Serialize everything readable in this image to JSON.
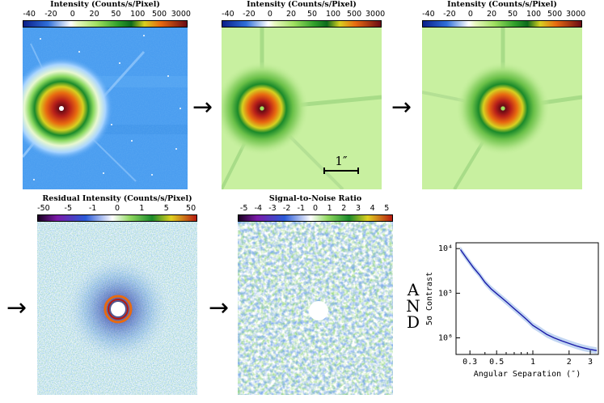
{
  "colorbars": {
    "intensity_title": "Intensity (Counts/s/Pixel)",
    "intensity_ticks": [
      "-40",
      "-20",
      "0",
      "20",
      "50",
      "100",
      "500",
      "3000"
    ],
    "residual_title": "Residual Intensity (Counts/s/Pixel)",
    "residual_ticks": [
      "-50",
      "-5",
      "-1",
      "0",
      "1",
      "5",
      "50"
    ],
    "snr_title": "Signal-to-Noise Ratio",
    "snr_ticks": [
      "-5",
      "-4",
      "-3",
      "-2",
      "-1",
      "0",
      "1",
      "2",
      "3",
      "4",
      "5"
    ]
  },
  "scale_bar_label": "1″",
  "arrow_glyph": "→",
  "and_letters": [
    "A",
    "N",
    "D"
  ],
  "colors": {
    "intensity_bg_raw": "#4a9df0",
    "intensity_bg_processed": "#c8f0a0",
    "arrow": "#000000",
    "curve": "#1a1aa8",
    "curve_band": "#8fb5e8"
  },
  "chart_data": {
    "type": "line",
    "title": "",
    "xlabel": "Angular Separation (″)",
    "ylabel": "5σ Contrast",
    "xscale": "log",
    "yscale": "log",
    "xlim": [
      0.23,
      3.5
    ],
    "ylim": [
      4.25e-07,
      0.000135
    ],
    "x_ticks": [
      "0.3",
      "0.5",
      "1",
      "2",
      "3"
    ],
    "x_tick_values": [
      0.3,
      0.5,
      1,
      2,
      3
    ],
    "y_ticks": [
      "10⁴",
      "10⁵",
      "10⁶"
    ],
    "y_tick_values": [
      0.0001,
      1e-05,
      1e-06
    ],
    "series": [
      {
        "name": "contrast",
        "x": [
          0.25,
          0.28,
          0.32,
          0.36,
          0.4,
          0.45,
          0.5,
          0.56,
          0.63,
          0.7,
          0.8,
          0.9,
          1.0,
          1.15,
          1.3,
          1.5,
          1.75,
          2.0,
          2.3,
          2.6,
          3.0,
          3.4
        ],
        "y": [
          9.5e-05,
          6.2e-05,
          3.8e-05,
          2.6e-05,
          1.75e-05,
          1.25e-05,
          9.8e-06,
          7.6e-06,
          5.8e-06,
          4.5e-06,
          3.3e-06,
          2.5e-06,
          1.9e-06,
          1.5e-06,
          1.2e-06,
          1e-06,
          8.5e-07,
          7.5e-07,
          6.6e-07,
          6e-07,
          5.5e-07,
          5.2e-07
        ]
      }
    ]
  }
}
